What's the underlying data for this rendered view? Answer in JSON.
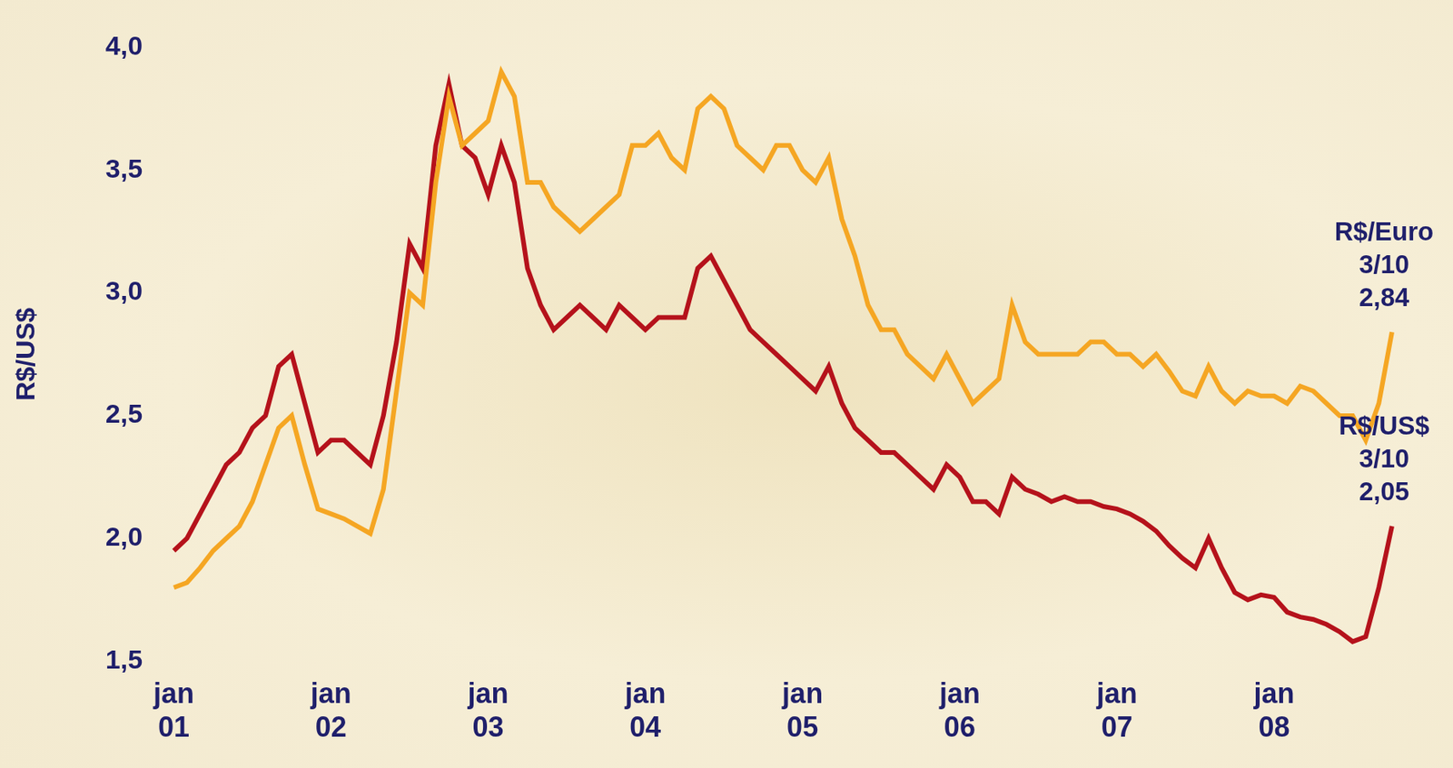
{
  "chart_data": {
    "type": "line",
    "y_label": "R$/US$",
    "categories": [
      "jan 01",
      null,
      null,
      null,
      null,
      null,
      null,
      null,
      null,
      null,
      null,
      null,
      "jan 02",
      null,
      null,
      null,
      null,
      null,
      null,
      null,
      null,
      null,
      null,
      null,
      "jan 03",
      null,
      null,
      null,
      null,
      null,
      null,
      null,
      null,
      null,
      null,
      null,
      "jan 04",
      null,
      null,
      null,
      null,
      null,
      null,
      null,
      null,
      null,
      null,
      null,
      "jan 05",
      null,
      null,
      null,
      null,
      null,
      null,
      null,
      null,
      null,
      null,
      null,
      "jan 06",
      null,
      null,
      null,
      null,
      null,
      null,
      null,
      null,
      null,
      null,
      null,
      "jan 07",
      null,
      null,
      null,
      null,
      null,
      null,
      null,
      null,
      null,
      null,
      null,
      "jan 08",
      null,
      null,
      null,
      null,
      null,
      null,
      null,
      null,
      null
    ],
    "series": [
      {
        "name": "R$/Euro",
        "color": "#f5a623",
        "values": [
          1.8,
          1.82,
          1.88,
          1.95,
          2.0,
          2.05,
          2.15,
          2.3,
          2.45,
          2.5,
          2.3,
          2.12,
          2.1,
          2.08,
          2.05,
          2.02,
          2.2,
          2.6,
          3.0,
          2.95,
          3.45,
          3.8,
          3.6,
          3.65,
          3.7,
          3.9,
          3.8,
          3.45,
          3.45,
          3.35,
          3.3,
          3.25,
          3.3,
          3.35,
          3.4,
          3.6,
          3.6,
          3.65,
          3.55,
          3.5,
          3.75,
          3.8,
          3.75,
          3.6,
          3.55,
          3.5,
          3.6,
          3.6,
          3.5,
          3.45,
          3.55,
          3.3,
          3.15,
          2.95,
          2.85,
          2.85,
          2.75,
          2.7,
          2.65,
          2.75,
          2.65,
          2.55,
          2.6,
          2.65,
          2.95,
          2.8,
          2.75,
          2.75,
          2.75,
          2.75,
          2.8,
          2.8,
          2.75,
          2.75,
          2.7,
          2.75,
          2.68,
          2.6,
          2.58,
          2.7,
          2.6,
          2.55,
          2.6,
          2.58,
          2.58,
          2.55,
          2.62,
          2.6,
          2.55,
          2.5,
          2.5,
          2.4,
          2.55,
          2.84
        ]
      },
      {
        "name": "R$/US$",
        "color": "#b5121b",
        "values": [
          1.95,
          2.0,
          2.1,
          2.2,
          2.3,
          2.35,
          2.45,
          2.5,
          2.7,
          2.75,
          2.55,
          2.35,
          2.4,
          2.4,
          2.35,
          2.3,
          2.5,
          2.8,
          3.2,
          3.1,
          3.6,
          3.85,
          3.6,
          3.55,
          3.4,
          3.6,
          3.45,
          3.1,
          2.95,
          2.85,
          2.9,
          2.95,
          2.9,
          2.85,
          2.95,
          2.9,
          2.85,
          2.9,
          2.9,
          2.9,
          3.1,
          3.15,
          3.05,
          2.95,
          2.85,
          2.8,
          2.75,
          2.7,
          2.65,
          2.6,
          2.7,
          2.55,
          2.45,
          2.4,
          2.35,
          2.35,
          2.3,
          2.25,
          2.2,
          2.3,
          2.25,
          2.15,
          2.15,
          2.1,
          2.25,
          2.2,
          2.18,
          2.15,
          2.17,
          2.15,
          2.15,
          2.13,
          2.12,
          2.1,
          2.07,
          2.03,
          1.97,
          1.92,
          1.88,
          2.0,
          1.88,
          1.78,
          1.75,
          1.77,
          1.76,
          1.7,
          1.68,
          1.67,
          1.65,
          1.62,
          1.58,
          1.6,
          1.8,
          2.05
        ]
      }
    ],
    "ylim": [
      1.5,
      4.0
    ],
    "yticks": [
      {
        "value": 1.5,
        "label": "1,5"
      },
      {
        "value": 2.0,
        "label": "2,0"
      },
      {
        "value": 2.5,
        "label": "2,5"
      },
      {
        "value": 3.0,
        "label": "3,0"
      },
      {
        "value": 3.5,
        "label": "3,5"
      },
      {
        "value": 4.0,
        "label": "4,0"
      }
    ],
    "grid": false,
    "annotations": [
      {
        "series": "R$/Euro",
        "lines": [
          "R$/Euro",
          "3/10",
          "2,84"
        ]
      },
      {
        "series": "R$/US$",
        "lines": [
          "R$/US$",
          "3/10",
          "2,05"
        ]
      }
    ]
  }
}
